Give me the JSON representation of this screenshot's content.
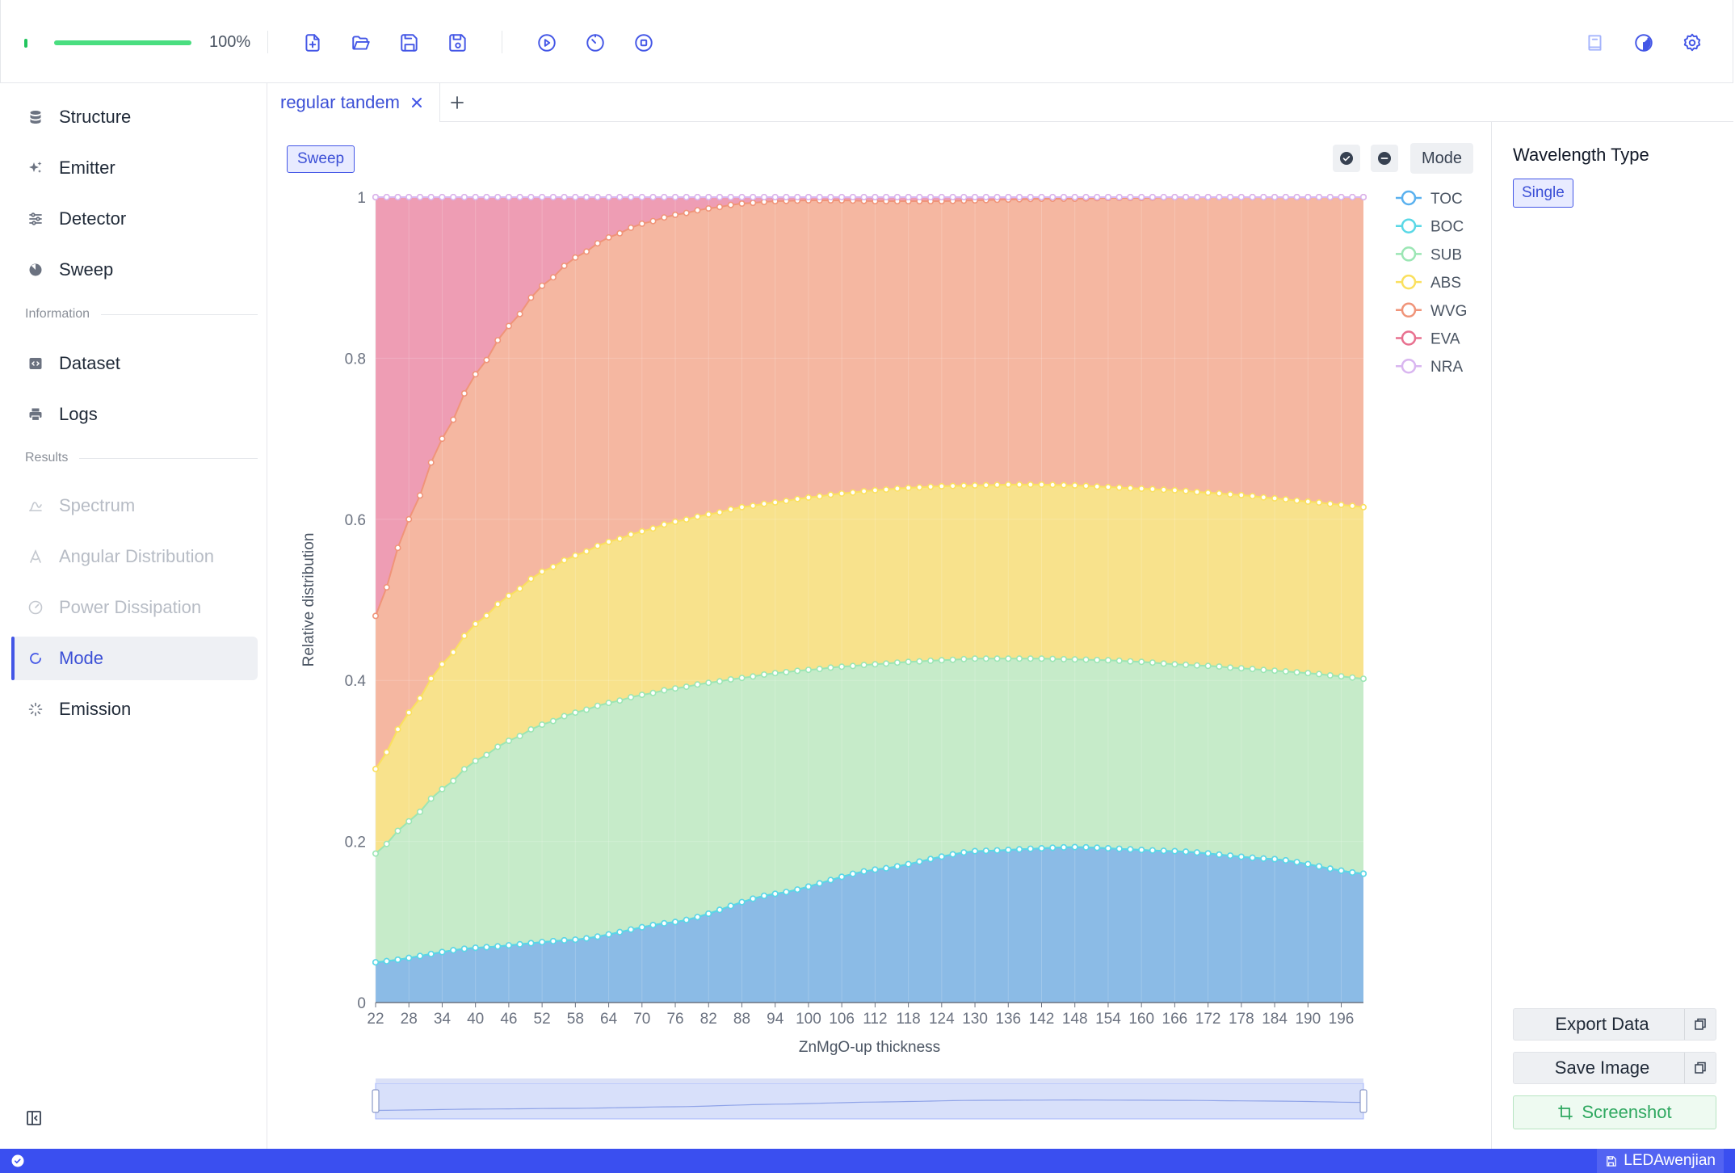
{
  "toolbar": {
    "progress_percent": 100,
    "progress_text": "100%",
    "left_buttons": [
      "new-file-icon",
      "open-folder-icon",
      "save-icon",
      "save-as-icon"
    ],
    "run_buttons": [
      "run-icon",
      "timer-icon",
      "stop-icon"
    ],
    "right_buttons": [
      "book-icon",
      "theme-icon",
      "settings-icon"
    ]
  },
  "sidebar": {
    "items_setup": [
      {
        "label": "Structure",
        "icon": "database-icon"
      },
      {
        "label": "Emitter",
        "icon": "sparkle-icon"
      },
      {
        "label": "Detector",
        "icon": "sliders-icon"
      },
      {
        "label": "Sweep",
        "icon": "sweep-icon"
      }
    ],
    "section_information": "Information",
    "items_information": [
      {
        "label": "Dataset",
        "icon": "code-icon"
      },
      {
        "label": "Logs",
        "icon": "printer-icon"
      }
    ],
    "section_results": "Results",
    "items_results": [
      {
        "label": "Spectrum",
        "icon": "spectrum-icon",
        "disabled": true
      },
      {
        "label": "Angular Distribution",
        "icon": "angle-icon",
        "disabled": true
      },
      {
        "label": "Power Dissipation",
        "icon": "gauge-icon",
        "disabled": true
      },
      {
        "label": "Mode",
        "icon": "mode-icon",
        "active": true
      },
      {
        "label": "Emission",
        "icon": "loader-icon"
      }
    ]
  },
  "tabs": [
    {
      "label": "regular tandem",
      "active": true
    }
  ],
  "main": {
    "sweep_button": "Sweep",
    "mode_button": "Mode"
  },
  "right_panel": {
    "wavelength_title": "Wavelength Type",
    "single_button": "Single",
    "export_data": "Export Data",
    "save_image": "Save Image",
    "screenshot": "Screenshot"
  },
  "status_bar": {
    "file_name": "LEDAwenjian"
  },
  "chart_data": {
    "type": "area",
    "stacked": true,
    "xlabel": "ZnMgO-up thickness",
    "ylabel": "Relative distribution",
    "ylim": [
      0,
      1
    ],
    "y_ticks": [
      0,
      0.2,
      0.4,
      0.6,
      0.8,
      1
    ],
    "y_tick_labels": [
      "0",
      "0.2",
      "0.4",
      "0.6",
      "0.8",
      "1"
    ],
    "x_range": [
      22,
      200
    ],
    "x_step": 2,
    "x_ticks": [
      22,
      28,
      34,
      40,
      46,
      52,
      58,
      64,
      70,
      76,
      82,
      88,
      94,
      100,
      106,
      112,
      118,
      124,
      130,
      136,
      142,
      148,
      154,
      160,
      166,
      172,
      178,
      184,
      190,
      196
    ],
    "legend_position": "top-right",
    "grid": true,
    "datazoom": {
      "start": 0,
      "end": 100
    },
    "series_boundaries_note_free": true,
    "series": [
      {
        "name": "TOC",
        "color": "#5ab1ef",
        "fill": "#8bbbe6",
        "anchors": [
          [
            22,
            0.05
          ],
          [
            40,
            0.068
          ],
          [
            58,
            0.078
          ],
          [
            76,
            0.1
          ],
          [
            94,
            0.135
          ],
          [
            112,
            0.165
          ],
          [
            130,
            0.188
          ],
          [
            148,
            0.193
          ],
          [
            166,
            0.188
          ],
          [
            184,
            0.178
          ],
          [
            200,
            0.16
          ]
        ]
      },
      {
        "name": "BOC",
        "color": "#5ad8e6",
        "fill": "#8bbbe6",
        "anchors": [
          [
            22,
            0.05
          ],
          [
            40,
            0.068
          ],
          [
            58,
            0.078
          ],
          [
            76,
            0.1
          ],
          [
            94,
            0.135
          ],
          [
            112,
            0.165
          ],
          [
            130,
            0.188
          ],
          [
            148,
            0.193
          ],
          [
            166,
            0.188
          ],
          [
            184,
            0.178
          ],
          [
            200,
            0.16
          ]
        ]
      },
      {
        "name": "SUB",
        "color": "#9be6b4",
        "fill": "#c3ebcc",
        "anchors": [
          [
            22,
            0.185
          ],
          [
            28,
            0.225
          ],
          [
            34,
            0.265
          ],
          [
            40,
            0.3
          ],
          [
            46,
            0.325
          ],
          [
            52,
            0.345
          ],
          [
            58,
            0.36
          ],
          [
            64,
            0.372
          ],
          [
            70,
            0.382
          ],
          [
            76,
            0.39
          ],
          [
            82,
            0.397
          ],
          [
            88,
            0.403
          ],
          [
            94,
            0.409
          ],
          [
            100,
            0.413
          ],
          [
            106,
            0.417
          ],
          [
            112,
            0.42
          ],
          [
            118,
            0.423
          ],
          [
            124,
            0.425
          ],
          [
            130,
            0.427
          ],
          [
            136,
            0.427
          ],
          [
            142,
            0.427
          ],
          [
            148,
            0.426
          ],
          [
            154,
            0.425
          ],
          [
            160,
            0.423
          ],
          [
            166,
            0.42
          ],
          [
            172,
            0.418
          ],
          [
            178,
            0.415
          ],
          [
            184,
            0.412
          ],
          [
            190,
            0.409
          ],
          [
            196,
            0.405
          ],
          [
            200,
            0.402
          ]
        ]
      },
      {
        "name": "ABS",
        "color": "#fae05f",
        "fill": "#f8e48b",
        "anchors": [
          [
            22,
            0.29
          ],
          [
            28,
            0.36
          ],
          [
            34,
            0.42
          ],
          [
            40,
            0.47
          ],
          [
            46,
            0.505
          ],
          [
            52,
            0.535
          ],
          [
            58,
            0.555
          ],
          [
            64,
            0.572
          ],
          [
            70,
            0.585
          ],
          [
            76,
            0.597
          ],
          [
            82,
            0.606
          ],
          [
            88,
            0.615
          ],
          [
            94,
            0.621
          ],
          [
            100,
            0.627
          ],
          [
            106,
            0.632
          ],
          [
            112,
            0.636
          ],
          [
            118,
            0.639
          ],
          [
            124,
            0.641
          ],
          [
            130,
            0.642
          ],
          [
            136,
            0.643
          ],
          [
            142,
            0.643
          ],
          [
            148,
            0.642
          ],
          [
            154,
            0.64
          ],
          [
            160,
            0.638
          ],
          [
            166,
            0.636
          ],
          [
            172,
            0.633
          ],
          [
            178,
            0.63
          ],
          [
            184,
            0.626
          ],
          [
            190,
            0.622
          ],
          [
            196,
            0.618
          ],
          [
            200,
            0.615
          ]
        ]
      },
      {
        "name": "WVG",
        "color": "#f09479",
        "fill": "#f4b8a0",
        "anchors": [
          [
            22,
            0.48
          ],
          [
            28,
            0.6
          ],
          [
            34,
            0.7
          ],
          [
            40,
            0.78
          ],
          [
            46,
            0.84
          ],
          [
            52,
            0.89
          ],
          [
            58,
            0.925
          ],
          [
            64,
            0.95
          ],
          [
            70,
            0.967
          ],
          [
            76,
            0.978
          ],
          [
            82,
            0.986
          ],
          [
            88,
            0.992
          ],
          [
            94,
            0.995
          ],
          [
            100,
            0.996
          ],
          [
            106,
            0.996
          ],
          [
            112,
            0.995
          ],
          [
            118,
            0.995
          ],
          [
            124,
            0.995
          ],
          [
            130,
            0.996
          ],
          [
            136,
            0.997
          ],
          [
            142,
            0.998
          ],
          [
            148,
            0.998
          ],
          [
            154,
            0.999
          ],
          [
            160,
            0.999
          ],
          [
            166,
            1
          ],
          [
            200,
            1
          ]
        ]
      },
      {
        "name": "EVA",
        "color": "#e8708f",
        "fill": "#ef9bb0",
        "anchors": [
          [
            22,
            1
          ],
          [
            200,
            1
          ]
        ]
      },
      {
        "name": "NRA",
        "color": "#d9b6f0",
        "fill": "#d9b6f0",
        "anchors": [
          [
            22,
            1
          ],
          [
            200,
            1
          ]
        ]
      }
    ]
  }
}
